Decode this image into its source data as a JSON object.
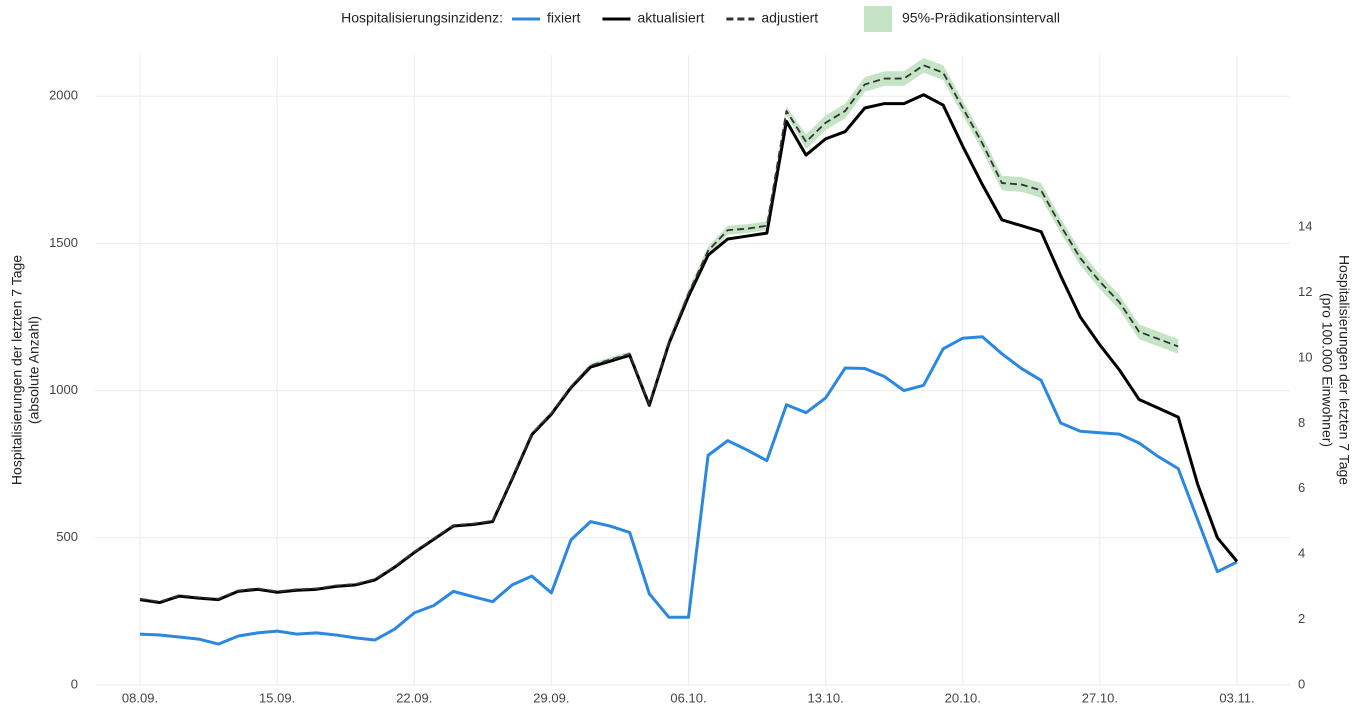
{
  "chart_data": {
    "type": "line",
    "legend_title": "Hospitalisierungsinzidenz:",
    "y_label": [
      "Hospitalisierungen der letzten 7 Tage",
      "(absolute Anzahl)"
    ],
    "y2_label": [
      "Hospitalisierungen der letzten 7 Tage",
      "(pro 100.000 Einwohner)"
    ],
    "legend_position": "top",
    "grid": true,
    "x": [
      "08.09.",
      "09.09.",
      "10.09.",
      "11.09.",
      "12.09.",
      "13.09.",
      "14.09.",
      "15.09.",
      "16.09.",
      "17.09.",
      "18.09.",
      "19.09.",
      "20.09.",
      "21.09.",
      "22.09.",
      "23.09.",
      "24.09.",
      "25.09.",
      "26.09.",
      "27.09.",
      "28.09.",
      "29.09.",
      "30.09.",
      "01.10.",
      "02.10.",
      "03.10.",
      "04.10.",
      "05.10.",
      "06.10.",
      "07.10.",
      "08.10.",
      "09.10.",
      "10.10.",
      "11.10.",
      "12.10.",
      "13.10.",
      "14.10.",
      "15.10.",
      "16.10.",
      "17.10.",
      "18.10.",
      "19.10.",
      "20.10.",
      "21.10.",
      "22.10.",
      "23.10.",
      "24.10.",
      "25.10.",
      "26.10.",
      "27.10.",
      "28.10.",
      "29.10.",
      "30.10.",
      "31.10.",
      "01.11.",
      "02.11.",
      "03.11."
    ],
    "xticks": [
      "08.09.",
      "15.09.",
      "22.09.",
      "29.09.",
      "06.10.",
      "13.10.",
      "20.10.",
      "27.10.",
      "03.11."
    ],
    "ylim": [
      0,
      2140
    ],
    "yticks": [
      0,
      500,
      1000,
      1500,
      2000
    ],
    "y2lim": [
      0,
      19.26
    ],
    "y2ticks": [
      0,
      2,
      4,
      6,
      8,
      10,
      12,
      14
    ],
    "series": [
      {
        "name": "fixiert",
        "color": "#2b88e0",
        "dash": false,
        "values": [
          173,
          170,
          163,
          156,
          139,
          166,
          177,
          183,
          173,
          177,
          170,
          160,
          153,
          190,
          245,
          270,
          318,
          300,
          283,
          340,
          370,
          313,
          493,
          555,
          540,
          518,
          310,
          230,
          230,
          780,
          830,
          798,
          762,
          952,
          925,
          975,
          1077,
          1075,
          1048,
          1000,
          1018,
          1142,
          1178,
          1183,
          1125,
          1075,
          1035,
          890,
          862,
          857,
          852,
          822,
          775,
          735,
          560,
          385,
          418
        ]
      },
      {
        "name": "aktualisiert",
        "color": "#000000",
        "dash": false,
        "values": [
          290,
          280,
          302,
          295,
          290,
          318,
          325,
          315,
          322,
          325,
          335,
          340,
          357,
          400,
          450,
          495,
          540,
          545,
          555,
          700,
          850,
          920,
          1010,
          1080,
          1100,
          1120,
          950,
          1160,
          1320,
          1460,
          1515,
          1525,
          1535,
          1915,
          1800,
          1855,
          1880,
          1960,
          1975,
          1975,
          2005,
          1970,
          1830,
          1700,
          1580,
          1560,
          1540,
          1390,
          1250,
          1155,
          1070,
          970,
          940,
          910,
          680,
          500,
          420
        ]
      },
      {
        "name": "adjustiert",
        "color": "#333333",
        "dash": true,
        "values": [
          293,
          283,
          305,
          298,
          293,
          321,
          328,
          318,
          325,
          328,
          338,
          343,
          360,
          403,
          453,
          498,
          543,
          548,
          558,
          703,
          853,
          923,
          1013,
          1085,
          1105,
          1125,
          952,
          1165,
          1330,
          1475,
          1545,
          1550,
          1560,
          1950,
          1845,
          1910,
          1950,
          2040,
          2060,
          2060,
          2105,
          2080,
          1960,
          1840,
          1705,
          1700,
          1680,
          1560,
          1450,
          1370,
          1300,
          1200,
          1175,
          1150,
          null,
          null,
          null
        ]
      }
    ],
    "interval": {
      "name": "95%-Prädikationsintervall",
      "color": "#c5e3c5",
      "lower": [
        null,
        null,
        null,
        null,
        null,
        null,
        null,
        null,
        null,
        null,
        null,
        null,
        null,
        null,
        null,
        null,
        null,
        null,
        null,
        695,
        845,
        915,
        1005,
        1077,
        1097,
        1117,
        944,
        1150,
        1315,
        1460,
        1530,
        1535,
        1545,
        1935,
        1820,
        1885,
        1925,
        2015,
        2035,
        2035,
        2080,
        2055,
        1935,
        1815,
        1680,
        1675,
        1655,
        1535,
        1425,
        1345,
        1275,
        1175,
        1150,
        1125,
        null,
        null,
        null
      ],
      "upper": [
        null,
        null,
        null,
        null,
        null,
        null,
        null,
        null,
        null,
        null,
        null,
        null,
        null,
        null,
        null,
        null,
        null,
        null,
        null,
        711,
        861,
        931,
        1021,
        1093,
        1113,
        1133,
        960,
        1180,
        1345,
        1490,
        1560,
        1565,
        1575,
        1965,
        1870,
        1935,
        1975,
        2065,
        2085,
        2085,
        2130,
        2105,
        1985,
        1865,
        1730,
        1725,
        1705,
        1585,
        1475,
        1395,
        1325,
        1225,
        1200,
        1175,
        null,
        null,
        null
      ]
    }
  }
}
